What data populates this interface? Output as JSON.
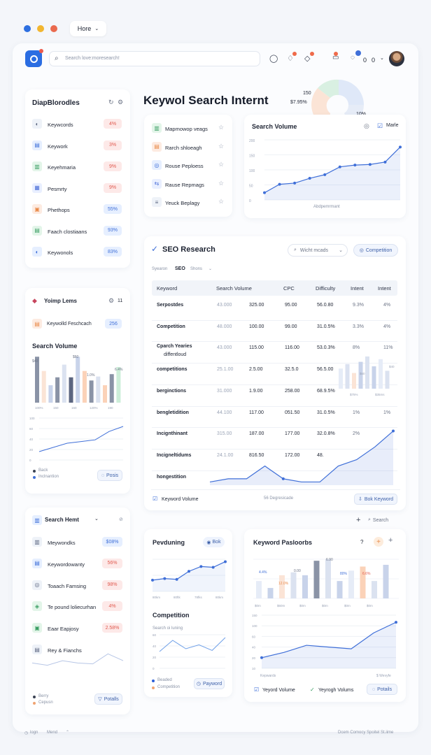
{
  "window": {
    "tab_label": "Hore"
  },
  "topbar": {
    "search_placeholder": "Search love:moresearch!",
    "counter_a": "0",
    "counter_b": "0"
  },
  "left_card1": {
    "title": "DiapBlorodles",
    "items": [
      {
        "label": "Keywcords",
        "badge": "4%",
        "tone": "red"
      },
      {
        "label": "Keywork",
        "badge": "3%",
        "tone": "red"
      },
      {
        "label": "Keyehmaria",
        "badge": "9%",
        "tone": "red"
      },
      {
        "label": "Pesmrty",
        "badge": "9%",
        "tone": "red"
      },
      {
        "label": "Phethops",
        "badge": "55%",
        "tone": "blue"
      },
      {
        "label": "Faach clostiaans",
        "badge": "93%",
        "tone": "blue"
      },
      {
        "label": "Keywonols",
        "badge": "83%",
        "tone": "blue"
      }
    ]
  },
  "hero": {
    "title": "Keywol Search Internt",
    "pie_label_a": "150",
    "pie_label_b": "$7.95%",
    "pie_label_c": "10%"
  },
  "mid_list": {
    "items": [
      {
        "label": "Mapmowop veags"
      },
      {
        "label": "Rarch shloeagh"
      },
      {
        "label": "Rouse Peploess"
      },
      {
        "label": "Rause Repmags"
      },
      {
        "label": "Yeuck Beplagy"
      }
    ]
  },
  "volume_card": {
    "title": "Search Volume",
    "legend": "Marle",
    "yticks": [
      "200",
      "150",
      "100",
      "50",
      "0"
    ],
    "caption": "Abdpemrmant"
  },
  "left_card2": {
    "title": "Yoimp Lems",
    "count": "11",
    "pill_label": "Keywolld Feschcach",
    "pill_badge": "256",
    "chart_title": "Search Volume",
    "bar_top_labels": [
      "$40",
      "$60",
      "1.0%",
      "6.4%"
    ],
    "bar_xlabels": [
      "100%",
      "150",
      "160",
      "120%",
      "190"
    ],
    "line_yticks": [
      "100",
      "60",
      "40",
      "20",
      "0"
    ],
    "legend": [
      "Back",
      "Inclnantion"
    ],
    "button": "Posis"
  },
  "seo": {
    "title": "SEO Research",
    "filter": "Wicht mcads",
    "competition_btn": "Competition",
    "sub": [
      "Syearon",
      "SEO",
      "Shons"
    ],
    "columns": [
      "Keyword",
      "Search Volume",
      "CPC",
      "Difficulty",
      "Intent",
      "Intent"
    ],
    "rows": [
      {
        "kw": "Serpostdes",
        "sv": "43.000",
        "v2": "325.00",
        "cpc": "95.00",
        "diff": "56.0.80",
        "i1": "9.3%",
        "i2": "4%"
      },
      {
        "kw": "Competition",
        "sv": "48.000",
        "v2": "100.00",
        "cpc": "99.00",
        "diff": "31.0.5%",
        "i1": "3.3%",
        "i2": "4%"
      },
      {
        "kw": "Cparch Yearies",
        "kw2": "diffentloud",
        "sv": "43.000",
        "v2": "115.00",
        "cpc": "116.00",
        "diff": "53.0.3%",
        "i1": "8%",
        "i2": "11%"
      },
      {
        "kw": "competitions",
        "sv": "25.1.00",
        "v2": "2.5.00",
        "cpc": "32.5.0",
        "diff": "56.5.00",
        "i1": "",
        "i2": ""
      },
      {
        "kw": "berginctions",
        "sv": "31.000",
        "v2": "1.9.00",
        "cpc": "258.00",
        "diff": "68.9.5%",
        "i1": "",
        "i2": ""
      },
      {
        "kw": "bengletidition",
        "sv": "44.100",
        "v2": "117.00",
        "cpc": "051.50",
        "diff": "31.0.5%",
        "i1": "1%",
        "i2": "1%"
      },
      {
        "kw": "Incignthinant",
        "sv": "315.00",
        "v2": "187.00",
        "cpc": "177.00",
        "diff": "32.0.8%",
        "i1": "2%",
        "i2": ""
      },
      {
        "kw": "Incigneltidums",
        "sv": "24.1.00",
        "v2": "816.50",
        "cpc": "172.00",
        "diff": "48.",
        "i1": "",
        "i2": ""
      },
      {
        "kw": "hongestition",
        "sv": "",
        "v2": "",
        "cpc": "",
        "diff": "",
        "i1": "",
        "i2": ""
      }
    ],
    "mini_bar_labels": [
      "$60",
      "$40"
    ],
    "mini_bar_x": [
      "$75%",
      "$35ms"
    ],
    "footer_left": "Keyword Volume",
    "footer_mid": "56 Degresicade",
    "footer_btn": "Bok Keyword"
  },
  "toolbar2": {
    "search": "Search"
  },
  "search_hemt": {
    "title": "Search Hemt",
    "items": [
      {
        "label": "Meywondks",
        "badge": "$08%",
        "tone": "blue"
      },
      {
        "label": "Keywordowanty",
        "badge": "56%",
        "tone": "red"
      },
      {
        "label": "Toaach Famsing",
        "badge": "98%",
        "tone": "red"
      },
      {
        "label": "Te pound loliecurhan",
        "badge": "4%",
        "tone": "red"
      },
      {
        "label": "Eaar Eapjosy",
        "badge": "2.58%",
        "tone": "red"
      },
      {
        "label": "Rey & Fianchs",
        "badge": "",
        "tone": ""
      }
    ],
    "legend": [
      "Berry",
      "Cepusn"
    ],
    "button": "Potalls"
  },
  "pevduning": {
    "title": "Pevduning",
    "btn": "Bok",
    "xlabels": [
      "80km",
      "80ftk",
      "78fks",
      "80km"
    ],
    "comp_title": "Competition",
    "comp_sub": "Search oi luning",
    "yticks": [
      "60",
      "40",
      "20",
      "0"
    ],
    "legend": [
      "Beaded",
      "Competition"
    ],
    "button": "Payword"
  },
  "kw_pasloorbs": {
    "title": "Keyword Pasloorbs",
    "q": "?",
    "bar_labels": [
      "4.4%",
      "12.0%",
      "0.00",
      "6.90",
      "80%",
      "6.6%"
    ],
    "bar_x": [
      "$0m",
      "$60m",
      "$0m",
      "$0m",
      "$0m",
      "$0m"
    ],
    "yticks": [
      "150",
      "100",
      "60",
      "40",
      "20",
      "10"
    ],
    "xlabels": [
      "Kepwards",
      "$ Wevyfe"
    ],
    "legend": [
      "Yeyord Volume",
      "Yeyrogh Volums"
    ],
    "button": "Potails"
  },
  "footer": {
    "left_a": "logn",
    "left_b": "Mend",
    "right": "Dcem Comocy  Spoitel St.iime"
  },
  "chart_data": [
    {
      "type": "line",
      "title": "Search Volume",
      "x": [
        1,
        2,
        3,
        4,
        5,
        6,
        7,
        8,
        9,
        10
      ],
      "values": [
        12,
        26,
        28,
        36,
        42,
        55,
        58,
        59,
        63,
        88
      ],
      "ylim": [
        0,
        200
      ]
    },
    {
      "type": "bar",
      "title": "Search Volume",
      "values": [
        58,
        40,
        22,
        32,
        48,
        32,
        58,
        40,
        28,
        33,
        22,
        36,
        45
      ]
    },
    {
      "type": "line",
      "values": [
        10,
        15,
        20,
        22,
        24,
        34,
        40
      ],
      "ylim": [
        0,
        100
      ]
    },
    {
      "type": "line",
      "values": [
        5,
        10,
        10,
        30,
        10,
        5,
        5,
        30,
        40,
        60,
        85
      ]
    },
    {
      "type": "bar",
      "values": [
        45,
        55,
        35,
        60,
        72,
        50,
        66,
        40
      ]
    },
    {
      "type": "line",
      "values": [
        30,
        25,
        35,
        30,
        28,
        50,
        35
      ]
    },
    {
      "type": "line",
      "values": [
        28,
        32,
        30,
        50,
        62,
        60,
        74
      ]
    },
    {
      "type": "line",
      "values": [
        30,
        50,
        35,
        42,
        32,
        55
      ]
    },
    {
      "type": "bar",
      "values": [
        30,
        18,
        40,
        45,
        40,
        65,
        68,
        30,
        48,
        55,
        30,
        58
      ]
    },
    {
      "type": "line",
      "values": [
        12,
        18,
        26,
        24,
        22,
        40,
        52
      ]
    }
  ]
}
